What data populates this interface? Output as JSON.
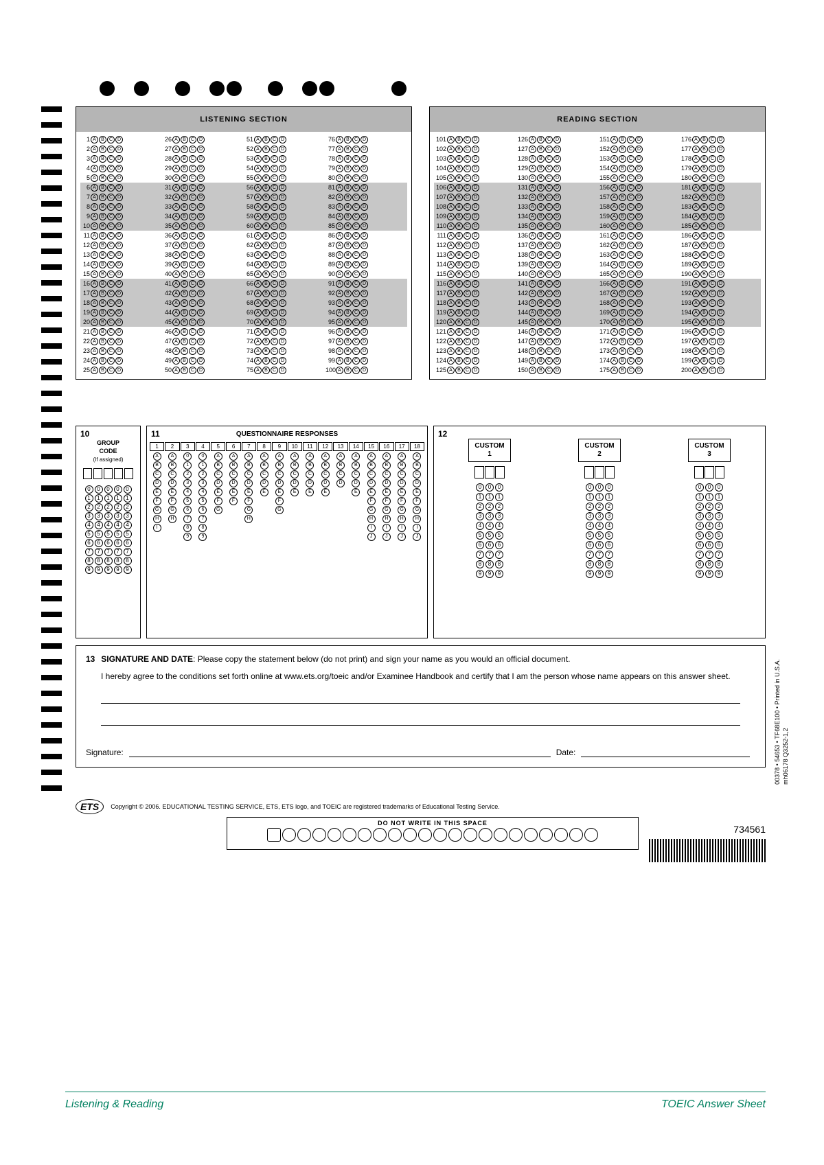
{
  "sections": {
    "listening": {
      "title": "LISTENING SECTION",
      "start": 1,
      "end": 100,
      "cols": 4,
      "numWidth": 2
    },
    "reading": {
      "title": "READING SECTION",
      "start": 101,
      "end": 200,
      "cols": 4,
      "numWidth": 3
    }
  },
  "choices": [
    "A",
    "B",
    "C",
    "D"
  ],
  "stripeEvery": 5,
  "panel10": {
    "num": "10",
    "title": "GROUP\nCODE",
    "sub": "(If assigned)",
    "boxCount": 5,
    "digits": [
      "0",
      "1",
      "2",
      "3",
      "4",
      "5",
      "6",
      "7",
      "8",
      "9"
    ]
  },
  "panel11": {
    "num": "11",
    "title": "QUESTIONNAIRE RESPONSES",
    "columns": 18,
    "rowLetters": [
      "A",
      "B",
      "C",
      "D",
      "E",
      "F",
      "G",
      "H",
      "I"
    ],
    "customPattern": {
      "3": [
        "0",
        "1",
        "2",
        "3",
        "4",
        "5",
        "6",
        "7",
        "8",
        "9"
      ],
      "4": [
        "0",
        "1",
        "2",
        "3",
        "4",
        "5",
        "6",
        "7",
        "8",
        "9"
      ],
      "15": [
        "A",
        "B",
        "C",
        "D",
        "E",
        "F",
        "G",
        "H",
        "I",
        "J"
      ],
      "16": [
        "A",
        "B",
        "C",
        "D",
        "E",
        "F",
        "G",
        "H",
        "I",
        "J"
      ],
      "17": [
        "A",
        "B",
        "C",
        "D",
        "E",
        "F",
        "G",
        "H",
        "I",
        "J"
      ],
      "18": [
        "A",
        "B",
        "C",
        "D",
        "E",
        "F",
        "G",
        "H",
        "I",
        "J"
      ]
    },
    "defaultLengths": {
      "1": 9,
      "2": 8,
      "5": 7,
      "6": 6,
      "7": 8,
      "8": 5,
      "9": 7,
      "10": 5,
      "11": 5,
      "12": 5,
      "13": 4,
      "14": 5
    }
  },
  "panel12": {
    "num": "12",
    "labels": [
      "CUSTOM\n1",
      "CUSTOM\n2",
      "CUSTOM\n3"
    ],
    "boxCount": 3,
    "digits": [
      "0",
      "1",
      "2",
      "3",
      "4",
      "5",
      "6",
      "7",
      "8",
      "9"
    ]
  },
  "panel13": {
    "num": "13",
    "heading": "SIGNATURE AND DATE",
    "instruction": ": Please copy the statement below (do not print) and sign your name as you would an official document.",
    "statement": "I hereby agree to the conditions set forth online at www.ets.org/toeic and/or Examinee Handbook and certify that I am the person whose name appears on this answer sheet.",
    "sigLabel": "Signature:",
    "dateLabel": "Date:"
  },
  "copyright": "Copyright © 2006. EDUCATIONAL TESTING SERVICE, ETS, ETS logo, and TOEIC are registered trademarks of Educational Testing Service.",
  "etsLogo": "ETS",
  "dnw": {
    "label": "DO NOT WRITE IN THIS SPACE",
    "circles": 22
  },
  "serial": "734561",
  "sideText": "00378 • 54653 • TF68E100 • Printed in U.S.A.\nmh06178        Q3252-1,2",
  "footer": {
    "left": "Listening & Reading",
    "right": "TOEIC Answer Sheet"
  },
  "topDotPositions": [
    85,
    135,
    195,
    245,
    270,
    330,
    380,
    405,
    510
  ],
  "timingMarkCount": 44,
  "colors": {
    "stripe": "#c7c7c7",
    "headerBg": "#b5b5b5",
    "footer": "#008060"
  }
}
